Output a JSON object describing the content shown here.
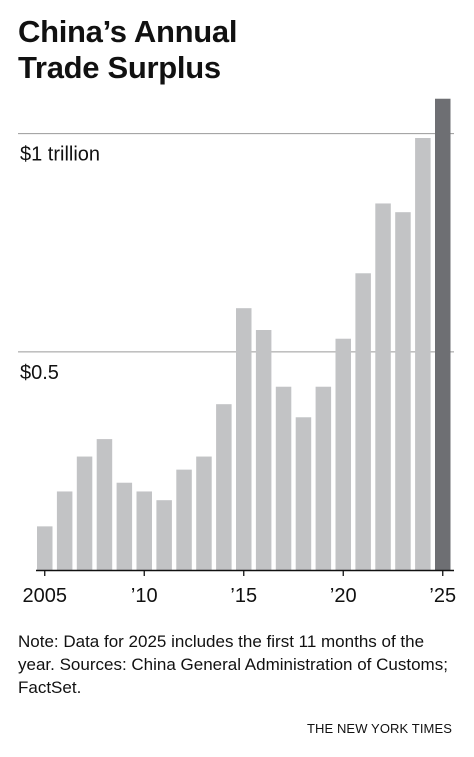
{
  "title_lines": [
    "China’s Annual",
    "Trade Surplus"
  ],
  "note": "Note: Data for 2025 includes the first 11 months of the year. Sources: China General Administration of Customs; FactSet.",
  "credit": "THE NEW YORK TIMES",
  "colors": {
    "bar": "#c2c3c5",
    "highlight": "#6e6f73",
    "grid": "#9a9a9a",
    "axis": "#111111"
  },
  "chart_data": {
    "type": "bar",
    "title": "China’s Annual Trade Surplus",
    "x": [
      2005,
      2006,
      2007,
      2008,
      2009,
      2010,
      2011,
      2012,
      2013,
      2014,
      2015,
      2016,
      2017,
      2018,
      2019,
      2020,
      2021,
      2022,
      2023,
      2024,
      2025
    ],
    "values": [
      0.1,
      0.18,
      0.26,
      0.3,
      0.2,
      0.18,
      0.16,
      0.23,
      0.26,
      0.38,
      0.6,
      0.55,
      0.42,
      0.35,
      0.42,
      0.53,
      0.68,
      0.84,
      0.82,
      0.99,
      1.08
    ],
    "highlight_index": 20,
    "y_unit": "trillion US dollars",
    "ylim": [
      0,
      1.1
    ],
    "y_gridlines": [
      {
        "value": 0.5,
        "label": "$0.5"
      },
      {
        "value": 1.0,
        "label": "$1 trillion"
      }
    ],
    "x_ticks": [
      {
        "value": 2005,
        "label": "2005"
      },
      {
        "value": 2010,
        "label": "’10"
      },
      {
        "value": 2015,
        "label": "’15"
      },
      {
        "value": 2020,
        "label": "’20"
      },
      {
        "value": 2025,
        "label": "’25"
      }
    ],
    "xlabel": "",
    "ylabel": "",
    "grid": "horizontal",
    "legend": "none"
  }
}
